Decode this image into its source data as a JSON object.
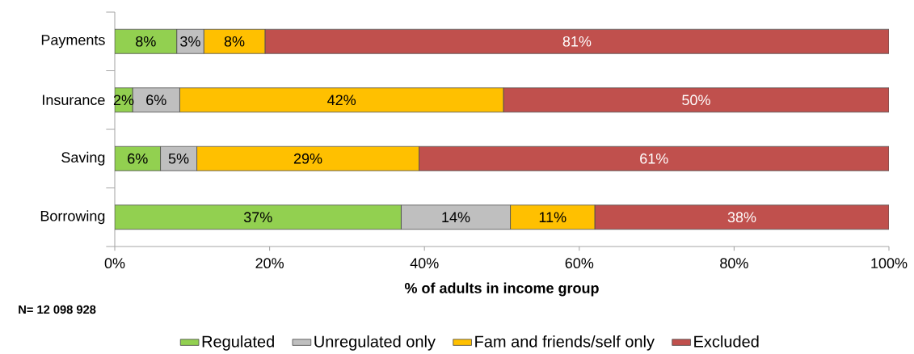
{
  "chart_data": {
    "type": "bar",
    "orientation": "horizontal",
    "stacked": true,
    "categories": [
      "Payments",
      "Insurance",
      "Saving",
      "Borrowing"
    ],
    "series": [
      {
        "name": "Regulated",
        "color": "#92d050",
        "values": [
          8,
          2.3,
          5.9,
          37
        ],
        "value_labels": [
          "8%",
          "2%",
          "6%",
          "37%"
        ]
      },
      {
        "name": "Unregulated only",
        "color": "#bfbfbf",
        "values": [
          3.5,
          6.1,
          4.7,
          14.1
        ],
        "value_labels": [
          "3%",
          "6%",
          "5%",
          "14%"
        ]
      },
      {
        "name": "Fam and friends/self only",
        "color": "#ffc000",
        "values": [
          7.9,
          41.8,
          28.7,
          10.9
        ],
        "value_labels": [
          "8%",
          "42%",
          "29%",
          "11%"
        ]
      },
      {
        "name": "Excluded",
        "color": "#c0504d",
        "values": [
          80.6,
          49.8,
          60.7,
          38
        ],
        "value_labels": [
          "81%",
          "50%",
          "61%",
          "38%"
        ]
      }
    ],
    "xlim": [
      0,
      100
    ],
    "xticks": [
      {
        "value": 0,
        "label": "0%"
      },
      {
        "value": 20,
        "label": "20%"
      },
      {
        "value": 40,
        "label": "40%"
      },
      {
        "value": 60,
        "label": "60%"
      },
      {
        "value": 80,
        "label": "80%"
      },
      {
        "value": 100,
        "label": "100%"
      }
    ],
    "xlabel": "% of adults in income group",
    "legend": "bottom",
    "annotations": [
      "N= 12 098 928"
    ]
  }
}
